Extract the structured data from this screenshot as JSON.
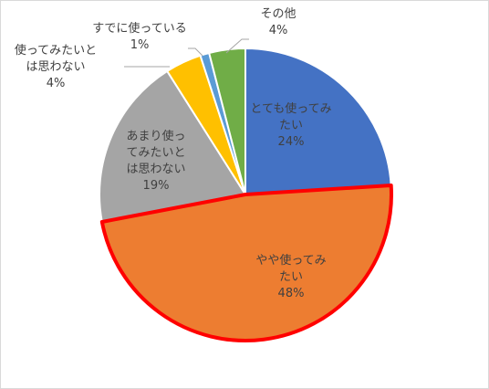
{
  "chart_data": {
    "type": "pie",
    "start_angle_deg": 0,
    "direction": "clockwise",
    "slices": [
      {
        "label_lines": [
          "とても使ってみ",
          "たい"
        ],
        "value": 24,
        "value_text": "24%",
        "color": "#4472C4",
        "highlight": false
      },
      {
        "label_lines": [
          "やや使ってみ",
          "たい"
        ],
        "value": 48,
        "value_text": "48%",
        "color": "#ED7D31",
        "highlight": true
      },
      {
        "label_lines": [
          "あまり使っ",
          "てみたいと",
          "は思わない"
        ],
        "value": 19,
        "value_text": "19%",
        "color": "#A5A5A5",
        "highlight": false
      },
      {
        "label_lines": [
          "使ってみたいと",
          "は思わない"
        ],
        "value": 4,
        "value_text": "4%",
        "color": "#FFC000",
        "highlight": false
      },
      {
        "label_lines": [
          "すでに使っている"
        ],
        "value": 1,
        "value_text": "1%",
        "color": "#5B9BD5",
        "highlight": false
      },
      {
        "label_lines": [
          "その他"
        ],
        "value": 4,
        "value_text": "4%",
        "color": "#70AD47",
        "highlight": false
      }
    ],
    "highlight_color": "#FF0000",
    "title": ""
  }
}
